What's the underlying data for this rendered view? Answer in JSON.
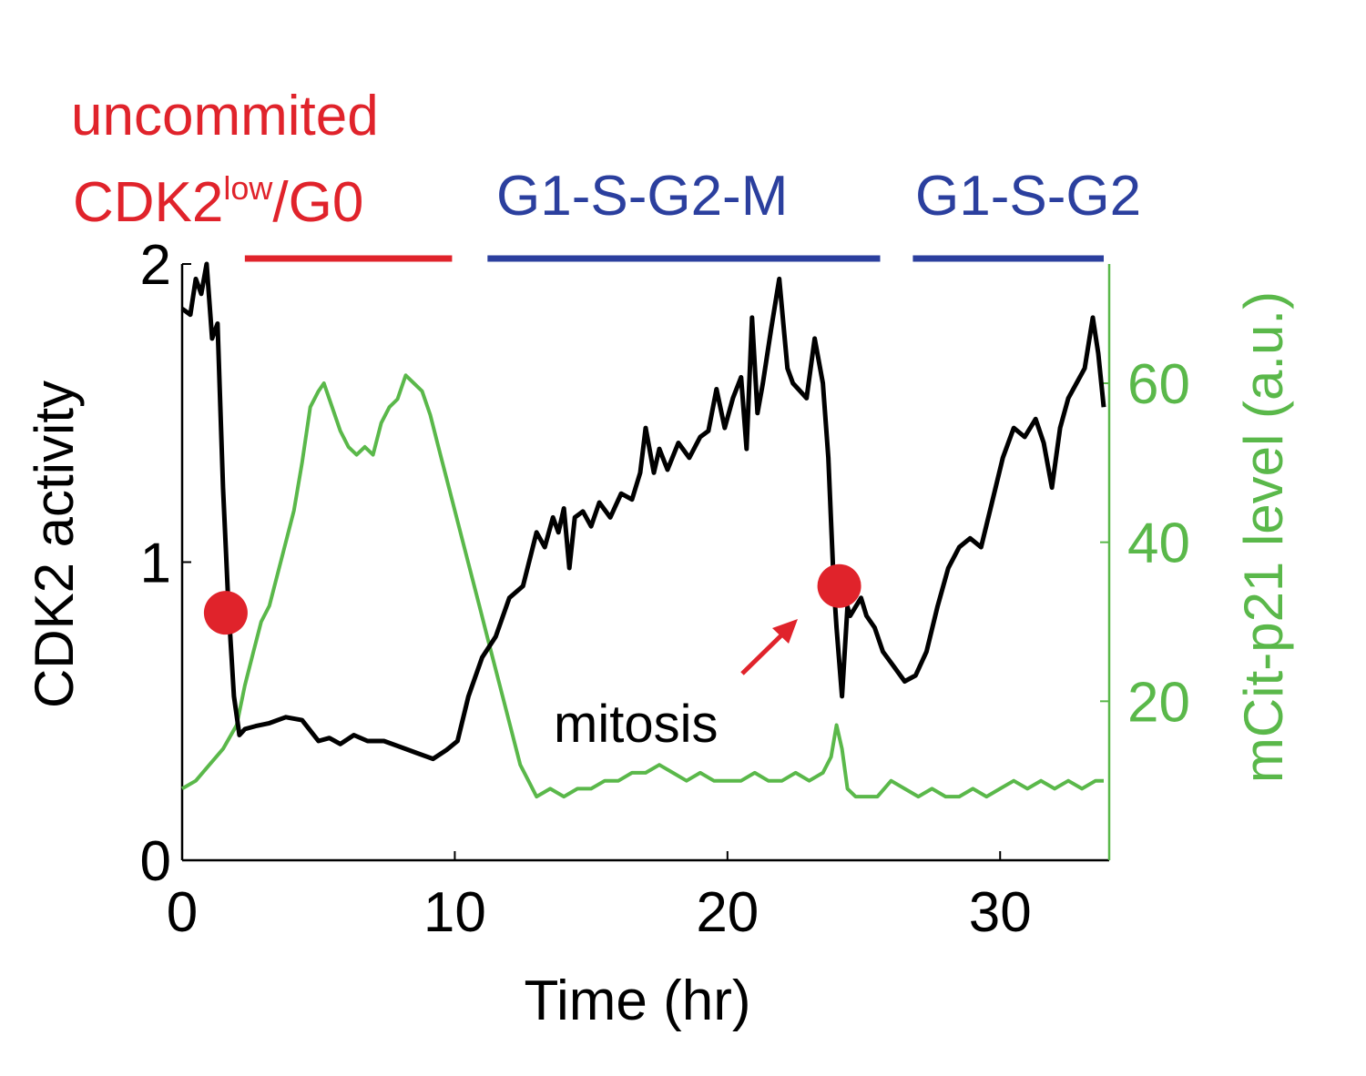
{
  "colors": {
    "cdk2": "#000000",
    "p21": "#5ab84a",
    "uncommitted": "#e0232b",
    "cycling": "#2b3f9e",
    "arrow": "#e0232b"
  },
  "phase_labels": {
    "uncommitted_line1": "uncommited",
    "uncommitted_cdk2": "CDK2",
    "uncommitted_sup": "low",
    "uncommitted_rest": "/G0",
    "cycle1": "G1-S-G2-M",
    "cycle2": "G1-S-G2"
  },
  "annotation": {
    "text": "mitosis"
  },
  "chart_data": {
    "type": "line",
    "xlabel": "Time (hr)",
    "ylabel_left": "CDK2 activity",
    "ylabel_right": "mCit-p21 level (a.u.)",
    "xlim": [
      0,
      34
    ],
    "ylim_left": [
      0,
      2
    ],
    "ylim_right": [
      0,
      75
    ],
    "xticks": [
      0,
      10,
      20,
      30
    ],
    "yticks_left": [
      0,
      1,
      2
    ],
    "yticks_right": [
      20,
      40,
      60
    ],
    "grid": false,
    "phase_bars": [
      {
        "label": "uncommited CDK2low/G0",
        "x_start": 2.3,
        "x_end": 9.9
      },
      {
        "label": "G1-S-G2-M",
        "x_start": 11.2,
        "x_end": 25.6
      },
      {
        "label": "G1-S-G2",
        "x_start": 26.8,
        "x_end": 33.8
      }
    ],
    "markers": [
      {
        "x": 1.6,
        "y": 0.83
      },
      {
        "x": 24.1,
        "y": 0.92
      }
    ],
    "series": [
      {
        "axis": "left",
        "x": [
          0,
          0.3,
          0.5,
          0.7,
          0.9,
          1.1,
          1.3,
          1.5,
          1.7,
          1.9,
          2.1,
          2.3,
          2.7,
          3.2,
          3.8,
          4.4,
          5.0,
          5.4,
          5.8,
          6.3,
          6.8,
          7.4,
          8.0,
          8.6,
          9.2,
          9.7,
          10.1,
          10.5,
          11.0,
          11.5,
          12.0,
          12.5,
          13.0,
          13.3,
          13.6,
          13.8,
          14.0,
          14.2,
          14.4,
          14.7,
          15.0,
          15.3,
          15.7,
          16.1,
          16.5,
          16.8,
          17.0,
          17.3,
          17.5,
          17.8,
          18.2,
          18.6,
          19.0,
          19.3,
          19.6,
          19.9,
          20.2,
          20.5,
          20.7,
          20.9,
          21.1,
          21.3,
          21.6,
          21.9,
          22.2,
          22.4,
          22.6,
          22.9,
          23.2,
          23.5,
          23.7,
          23.9,
          24.0,
          24.2,
          24.4,
          24.5,
          24.7,
          24.9,
          25.1,
          25.4,
          25.7,
          26.1,
          26.5,
          26.9,
          27.3,
          27.7,
          28.1,
          28.5,
          28.9,
          29.3,
          29.7,
          30.1,
          30.5,
          30.9,
          31.3,
          31.6,
          31.9,
          32.2,
          32.5,
          32.8,
          33.1,
          33.4,
          33.6,
          33.8
        ],
        "values": [
          1.85,
          1.83,
          1.95,
          1.9,
          2.0,
          1.75,
          1.8,
          1.25,
          0.85,
          0.55,
          0.42,
          0.44,
          0.45,
          0.46,
          0.48,
          0.47,
          0.4,
          0.41,
          0.39,
          0.42,
          0.4,
          0.4,
          0.38,
          0.36,
          0.34,
          0.37,
          0.4,
          0.55,
          0.68,
          0.75,
          0.88,
          0.92,
          1.1,
          1.05,
          1.15,
          1.1,
          1.18,
          0.98,
          1.15,
          1.17,
          1.12,
          1.2,
          1.15,
          1.23,
          1.21,
          1.3,
          1.45,
          1.3,
          1.38,
          1.31,
          1.4,
          1.35,
          1.42,
          1.44,
          1.58,
          1.45,
          1.55,
          1.62,
          1.38,
          1.82,
          1.5,
          1.6,
          1.78,
          1.95,
          1.65,
          1.6,
          1.58,
          1.55,
          1.75,
          1.6,
          1.35,
          0.92,
          0.78,
          0.55,
          0.85,
          0.82,
          0.85,
          0.88,
          0.82,
          0.78,
          0.7,
          0.65,
          0.6,
          0.62,
          0.7,
          0.85,
          0.98,
          1.05,
          1.08,
          1.05,
          1.2,
          1.35,
          1.45,
          1.42,
          1.48,
          1.4,
          1.25,
          1.45,
          1.55,
          1.6,
          1.65,
          1.82,
          1.7,
          1.52
        ],
        "color": "#000000"
      },
      {
        "axis": "right",
        "x": [
          0,
          0.5,
          1.0,
          1.5,
          2.0,
          2.3,
          2.6,
          2.9,
          3.2,
          3.5,
          3.8,
          4.1,
          4.4,
          4.7,
          5.0,
          5.2,
          5.5,
          5.8,
          6.1,
          6.4,
          6.7,
          7.0,
          7.3,
          7.6,
          7.9,
          8.2,
          8.5,
          8.8,
          9.1,
          9.4,
          9.7,
          10.0,
          10.3,
          10.6,
          10.9,
          11.2,
          11.5,
          11.8,
          12.1,
          12.4,
          12.7,
          13.0,
          13.5,
          14.0,
          14.5,
          15.0,
          15.5,
          16.0,
          16.5,
          17.0,
          17.5,
          18.0,
          18.5,
          19.0,
          19.5,
          20.0,
          20.5,
          21.0,
          21.5,
          22.0,
          22.5,
          23.0,
          23.5,
          23.8,
          24.0,
          24.2,
          24.4,
          24.7,
          25.0,
          25.5,
          26.0,
          26.5,
          27.0,
          27.5,
          28.0,
          28.5,
          29.0,
          29.5,
          30.0,
          30.5,
          31.0,
          31.5,
          32.0,
          32.5,
          33.0,
          33.5,
          33.8
        ],
        "values": [
          9,
          10,
          12,
          14,
          17,
          22,
          26,
          30,
          32,
          36,
          40,
          44,
          50,
          57,
          59,
          60,
          57,
          54,
          52,
          51,
          52,
          51,
          55,
          57,
          58,
          61,
          60,
          59,
          56,
          52,
          48,
          44,
          40,
          36,
          32,
          28,
          24,
          20,
          16,
          12,
          10,
          8,
          9,
          8,
          9,
          9,
          10,
          10,
          11,
          11,
          12,
          11,
          10,
          11,
          10,
          10,
          10,
          11,
          10,
          10,
          11,
          10,
          11,
          13,
          17,
          14,
          9,
          8,
          8,
          8,
          10,
          9,
          8,
          9,
          8,
          8,
          9,
          8,
          9,
          10,
          9,
          10,
          9,
          10,
          9,
          10,
          10
        ],
        "color": "#5ab84a"
      }
    ]
  }
}
